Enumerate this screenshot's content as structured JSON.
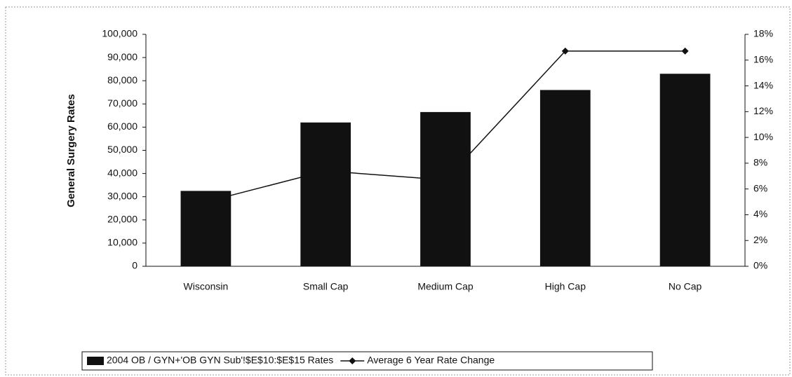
{
  "chart_data": {
    "type": "bar_line",
    "categories": [
      "Wisconsin",
      "Small Cap",
      "Medium Cap",
      "High Cap",
      "No Cap"
    ],
    "y_label": "General Surgery Rates",
    "series": [
      {
        "name": "2004 OB / GYN+'OB GYN Sub'!$E$10:$E$15 Rates",
        "type": "bar",
        "color": "#111111",
        "values": [
          32500,
          62000,
          66500,
          76000,
          83000
        ]
      },
      {
        "name": "Average 6 Year Rate Change",
        "type": "line",
        "axis": "y2",
        "color": "#111111",
        "values": [
          5,
          7.4,
          6.7,
          16.7,
          16.7
        ]
      }
    ],
    "ylim": [
      0,
      100000
    ],
    "yticks": [
      0,
      {
        "value": 10000,
        "label": "10,000"
      },
      {
        "value": 20000,
        "label": "20,000"
      },
      {
        "value": 30000,
        "label": "30,000"
      },
      {
        "value": 40000,
        "label": "40,000"
      },
      {
        "value": 50000,
        "label": "50,000"
      },
      {
        "value": 60000,
        "label": "60,000"
      },
      {
        "value": 70000,
        "label": "70,000"
      },
      {
        "value": 80000,
        "label": "80,000"
      },
      {
        "value": 90000,
        "label": "90,000"
      },
      {
        "value": 100000,
        "label": "100,000"
      }
    ],
    "y2lim": [
      0,
      18
    ],
    "y2ticks": [
      {
        "value": 0,
        "label": "0%"
      },
      {
        "value": 2,
        "label": "2%"
      },
      {
        "value": 4,
        "label": "4%"
      },
      {
        "value": 6,
        "label": "6%"
      },
      {
        "value": 8,
        "label": "8%"
      },
      {
        "value": 10,
        "label": "10%"
      },
      {
        "value": 12,
        "label": "12%"
      },
      {
        "value": 14,
        "label": "14%"
      },
      {
        "value": 16,
        "label": "16%"
      },
      {
        "value": 18,
        "label": "18%"
      }
    ],
    "legend": "bottom"
  }
}
